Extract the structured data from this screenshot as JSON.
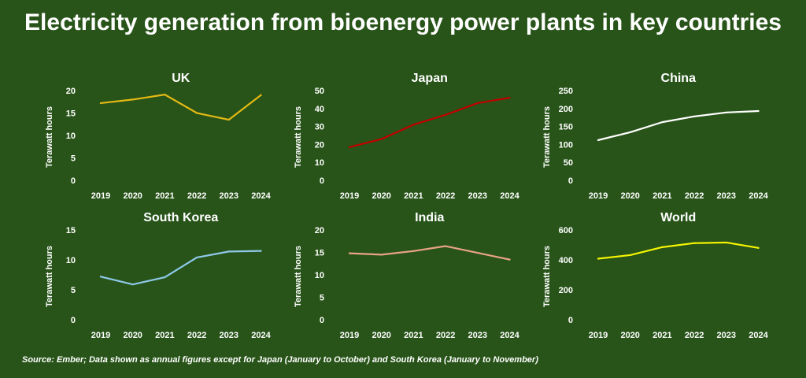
{
  "title": "Electricity generation from bioenergy power plants in key countries",
  "source": "Source: Ember; Data shown as annual figures except for Japan (January to October) and South Korea (January to November)",
  "chart_data": [
    {
      "type": "line",
      "title": "UK",
      "ylabel": "Terawatt hours",
      "x": [
        "2019",
        "2020",
        "2021",
        "2022",
        "2023",
        "2024"
      ],
      "ylim": [
        0,
        20
      ],
      "yticks": [
        0,
        5,
        10,
        15,
        20
      ],
      "series": [
        {
          "values": [
            17.2,
            18.0,
            19.1,
            15.0,
            13.5,
            19.0
          ],
          "color": "#e3b814"
        }
      ]
    },
    {
      "type": "line",
      "title": "Japan",
      "ylabel": "Terawatt hours",
      "x": [
        "2019",
        "2020",
        "2021",
        "2022",
        "2023",
        "2024"
      ],
      "ylim": [
        0,
        50
      ],
      "yticks": [
        0,
        10,
        20,
        30,
        40,
        50
      ],
      "series": [
        {
          "values": [
            18.5,
            23.0,
            31.0,
            36.5,
            43.0,
            46.0
          ],
          "color": "#c00000"
        }
      ]
    },
    {
      "type": "line",
      "title": "China",
      "ylabel": "Terawatt hours",
      "x": [
        "2019",
        "2020",
        "2021",
        "2022",
        "2023",
        "2024"
      ],
      "ylim": [
        0,
        250
      ],
      "yticks": [
        0,
        50,
        100,
        150,
        200,
        250
      ],
      "series": [
        {
          "values": [
            112,
            134,
            162,
            178,
            189,
            193
          ],
          "color": "#ffffff"
        }
      ]
    },
    {
      "type": "line",
      "title": "South Korea",
      "ylabel": "Terawatt hours",
      "x": [
        "2019",
        "2020",
        "2021",
        "2022",
        "2023",
        "2024"
      ],
      "ylim": [
        0,
        15
      ],
      "yticks": [
        0,
        5,
        10,
        15
      ],
      "series": [
        {
          "values": [
            7.2,
            5.9,
            7.1,
            10.4,
            11.4,
            11.5
          ],
          "color": "#8ec8e8"
        }
      ]
    },
    {
      "type": "line",
      "title": "India",
      "ylabel": "Terawatt hours",
      "x": [
        "2019",
        "2020",
        "2021",
        "2022",
        "2023",
        "2024"
      ],
      "ylim": [
        0,
        20
      ],
      "yticks": [
        0,
        5,
        10,
        15,
        20
      ],
      "series": [
        {
          "values": [
            14.8,
            14.5,
            15.3,
            16.4,
            14.9,
            13.4
          ],
          "color": "#e8a385"
        }
      ]
    },
    {
      "type": "line",
      "title": "World",
      "ylabel": "Terawatt hours",
      "x": [
        "2019",
        "2020",
        "2021",
        "2022",
        "2023",
        "2024"
      ],
      "ylim": [
        0,
        600
      ],
      "yticks": [
        0,
        200,
        400,
        600
      ],
      "series": [
        {
          "values": [
            408,
            432,
            485,
            512,
            516,
            480
          ],
          "color": "#f5f500"
        }
      ]
    }
  ]
}
